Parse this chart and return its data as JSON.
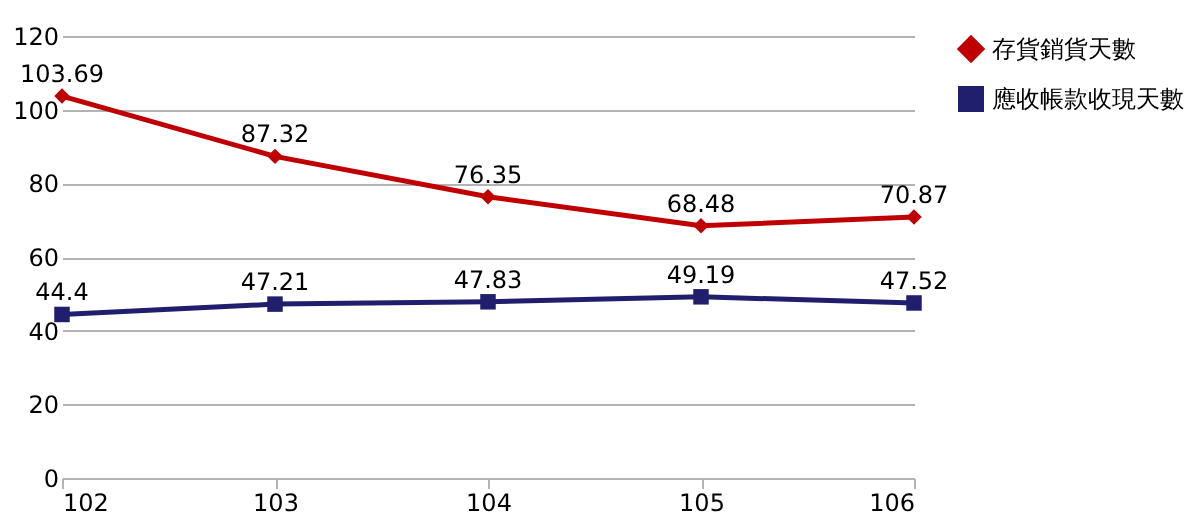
{
  "chart_data": {
    "type": "line",
    "x": [
      102,
      103,
      104,
      105,
      106
    ],
    "xlim": [
      102,
      106
    ],
    "xticks": [
      102,
      103,
      104,
      105,
      106
    ],
    "ylim": [
      0,
      120
    ],
    "yticks": [
      0,
      20,
      40,
      60,
      80,
      100,
      120
    ],
    "grid": "y",
    "legend": "right",
    "data_labels": true,
    "line_style": "solid",
    "series": [
      {
        "name": "存貨銷貨天數",
        "color": "#c00000",
        "marker": "diamond",
        "values": [
          103.69,
          87.32,
          76.35,
          68.48,
          70.87
        ]
      },
      {
        "name": "應收帳款收現天數",
        "color": "#1f1f6e",
        "marker": "square",
        "values": [
          44.4,
          47.21,
          47.83,
          49.19,
          47.52
        ]
      }
    ]
  }
}
